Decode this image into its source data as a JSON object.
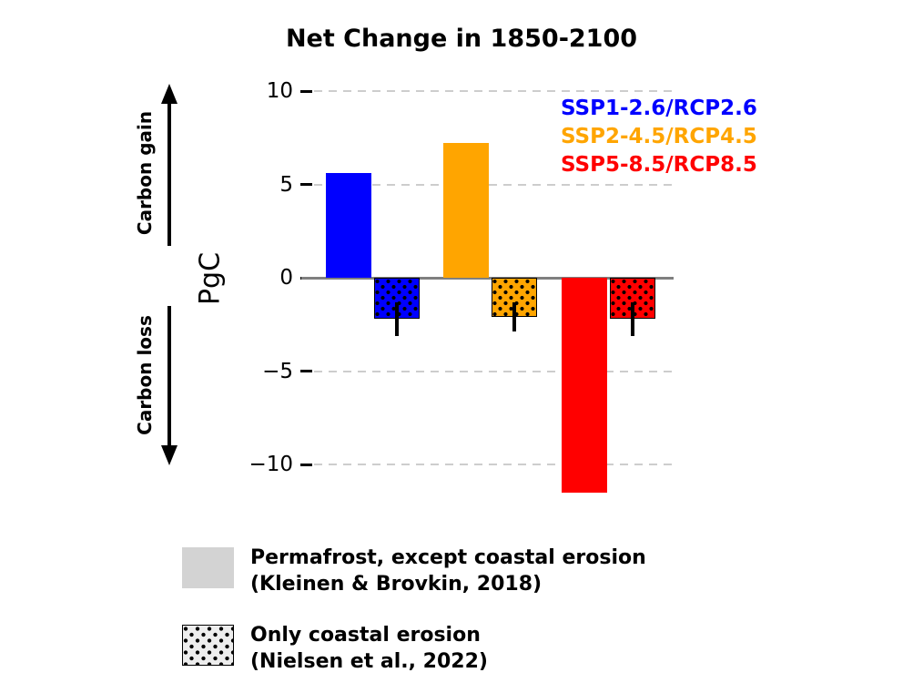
{
  "title": "Net Change in 1850-2100",
  "y_axis": {
    "label": "PgC",
    "ticks": [
      {
        "value": 10,
        "label": "10"
      },
      {
        "value": 5,
        "label": "5"
      },
      {
        "value": 0,
        "label": "0"
      },
      {
        "value": -5,
        "label": "−5"
      },
      {
        "value": -10,
        "label": "−10"
      }
    ]
  },
  "annotations": {
    "gain": "Carbon gain",
    "loss": "Carbon loss"
  },
  "scenarios": [
    {
      "label": "SSP1-2.6/RCP2.6",
      "color": "#0000ff"
    },
    {
      "label": "SSP2-4.5/RCP4.5",
      "color": "#ffa500"
    },
    {
      "label": "SSP5-8.5/RCP8.5",
      "color": "#ff0000"
    }
  ],
  "chart_data": {
    "type": "bar",
    "title": "Net Change in 1850-2100",
    "ylabel": "PgC",
    "ylim": [
      -12.5,
      11
    ],
    "yticks": [
      10,
      5,
      0,
      -5,
      -10
    ],
    "grid": "horizontal-dashed",
    "legend_position": "upper right",
    "categories": [
      "SSP1-2.6/RCP2.6",
      "SSP2-4.5/RCP4.5",
      "SSP5-8.5/RCP8.5"
    ],
    "colors": [
      "#0000ff",
      "#ffa500",
      "#ff0000"
    ],
    "series": [
      {
        "name": "Permafrost, except coastal erosion (Kleinen & Brovkin, 2018)",
        "pattern": "solid",
        "values": [
          5.6,
          7.2,
          -11.5
        ]
      },
      {
        "name": "Only coastal erosion (Nielsen et al., 2022)",
        "pattern": "dotted",
        "values": [
          -2.2,
          -2.1,
          -2.2
        ],
        "error": [
          0.9,
          0.8,
          0.9
        ]
      }
    ]
  },
  "bottom_legend": [
    {
      "swatch": "solid-gray-square",
      "line1": "Permafrost, except coastal erosion",
      "line2": "(Kleinen & Brovkin, 2018)"
    },
    {
      "swatch": "dotted-gray-square",
      "line1": "Only coastal erosion",
      "line2": "(Nielsen et al., 2022)"
    }
  ]
}
